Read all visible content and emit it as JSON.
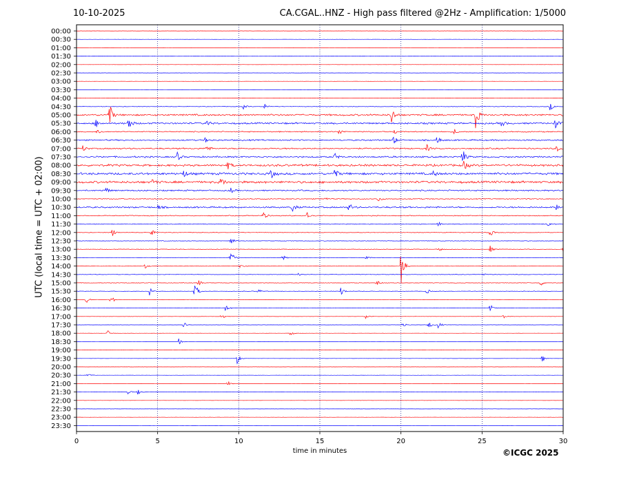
{
  "header": {
    "date": "10-10-2025",
    "title": "CA.CGAL..HNZ - High pass filtered @2Hz - Amplification: 1/5000"
  },
  "footer": {
    "copyright": "©ICGC 2025"
  },
  "colors": {
    "red_trace": "#ff0000",
    "blue_trace": "#0000ff",
    "grid": "#000080"
  },
  "chart_data": {
    "type": "line",
    "xlabel": "time in minutes",
    "ylabel": "UTC (local time = UTC + 02:00)",
    "xlim": [
      0,
      30
    ],
    "xticks": [
      0,
      5,
      10,
      15,
      20,
      25,
      30
    ],
    "grid": "vertical dotted lines at x = 5, 10, 15, 20, 25",
    "rows": [
      "00:00",
      "00:30",
      "01:00",
      "01:30",
      "02:00",
      "02:30",
      "03:00",
      "03:30",
      "04:00",
      "04:30",
      "05:00",
      "05:30",
      "06:00",
      "06:30",
      "07:00",
      "07:30",
      "08:00",
      "08:30",
      "09:00",
      "09:30",
      "10:00",
      "10:30",
      "11:00",
      "11:30",
      "12:00",
      "12:30",
      "13:00",
      "13:30",
      "14:00",
      "14:30",
      "15:00",
      "15:30",
      "16:00",
      "16:30",
      "17:00",
      "17:30",
      "18:00",
      "18:30",
      "19:00",
      "19:30",
      "20:00",
      "20:30",
      "21:00",
      "21:30",
      "22:00",
      "22:30",
      "23:00",
      "23:30"
    ],
    "series_colors": "alternating red / blue per row, starting red at 00:00",
    "noise_level": [
      0.1,
      0.1,
      0.1,
      0.15,
      0.1,
      0.1,
      0.1,
      0.1,
      0.1,
      0.3,
      1.0,
      1.0,
      0.6,
      0.8,
      0.8,
      0.9,
      1.2,
      1.3,
      1.3,
      0.8,
      0.5,
      0.9,
      0.5,
      0.4,
      0.3,
      0.3,
      0.3,
      0.25,
      0.25,
      0.3,
      0.3,
      0.25,
      0.2,
      0.15,
      0.15,
      0.12,
      0.1,
      0.1,
      0.1,
      0.1,
      0.1,
      0.1,
      0.1,
      0.1,
      0.1,
      0.1,
      0.1,
      0.1
    ],
    "events": [
      {
        "row": "04:30",
        "x": 10.3,
        "a": 4
      },
      {
        "row": "04:30",
        "x": 11.6,
        "a": 4
      },
      {
        "row": "04:30",
        "x": 29.2,
        "a": 6
      },
      {
        "row": "05:00",
        "x": 2.0,
        "a": 22
      },
      {
        "row": "05:00",
        "x": 19.4,
        "a": 14
      },
      {
        "row": "05:00",
        "x": 24.6,
        "a": 22
      },
      {
        "row": "05:30",
        "x": 3.2,
        "a": 12
      },
      {
        "row": "05:30",
        "x": 1.2,
        "a": 6
      },
      {
        "row": "05:30",
        "x": 8.0,
        "a": 5
      },
      {
        "row": "05:30",
        "x": 26.2,
        "a": 6
      },
      {
        "row": "05:30",
        "x": 29.5,
        "a": 8
      },
      {
        "row": "06:00",
        "x": 1.3,
        "a": 4
      },
      {
        "row": "06:00",
        "x": 16.2,
        "a": 5
      },
      {
        "row": "06:00",
        "x": 19.6,
        "a": 4
      },
      {
        "row": "06:00",
        "x": 23.3,
        "a": 4
      },
      {
        "row": "06:30",
        "x": 19.5,
        "a": 9
      },
      {
        "row": "06:30",
        "x": 22.2,
        "a": 7
      },
      {
        "row": "06:30",
        "x": 7.9,
        "a": 4
      },
      {
        "row": "07:00",
        "x": 0.4,
        "a": 5
      },
      {
        "row": "07:00",
        "x": 8.0,
        "a": 6
      },
      {
        "row": "07:00",
        "x": 21.6,
        "a": 5
      },
      {
        "row": "07:00",
        "x": 29.6,
        "a": 5
      },
      {
        "row": "07:30",
        "x": 6.2,
        "a": 7
      },
      {
        "row": "07:30",
        "x": 15.9,
        "a": 7
      },
      {
        "row": "07:30",
        "x": 23.8,
        "a": 12
      },
      {
        "row": "08:00",
        "x": 9.3,
        "a": 6
      },
      {
        "row": "08:00",
        "x": 23.9,
        "a": 9
      },
      {
        "row": "08:30",
        "x": 6.6,
        "a": 6
      },
      {
        "row": "08:30",
        "x": 12.0,
        "a": 7
      },
      {
        "row": "08:30",
        "x": 15.9,
        "a": 9
      },
      {
        "row": "08:30",
        "x": 22.0,
        "a": 5
      },
      {
        "row": "09:00",
        "x": 4.7,
        "a": 5
      },
      {
        "row": "09:00",
        "x": 8.9,
        "a": 8
      },
      {
        "row": "09:30",
        "x": 1.8,
        "a": 5
      },
      {
        "row": "09:30",
        "x": 9.5,
        "a": 4
      },
      {
        "row": "10:00",
        "x": 15.2,
        "a": 5
      },
      {
        "row": "10:00",
        "x": 18.6,
        "a": 5
      },
      {
        "row": "10:30",
        "x": 13.3,
        "a": 8
      },
      {
        "row": "10:30",
        "x": 16.8,
        "a": 7
      },
      {
        "row": "10:30",
        "x": 5.0,
        "a": 4
      },
      {
        "row": "10:30",
        "x": 29.6,
        "a": 5
      },
      {
        "row": "11:00",
        "x": 11.5,
        "a": 7
      },
      {
        "row": "11:00",
        "x": 14.2,
        "a": 6
      },
      {
        "row": "11:30",
        "x": 22.3,
        "a": 4
      },
      {
        "row": "11:30",
        "x": 29.0,
        "a": 7
      },
      {
        "row": "12:00",
        "x": 2.2,
        "a": 7
      },
      {
        "row": "12:00",
        "x": 4.6,
        "a": 5
      },
      {
        "row": "12:00",
        "x": 25.5,
        "a": 6
      },
      {
        "row": "12:30",
        "x": 9.5,
        "a": 7
      },
      {
        "row": "13:00",
        "x": 30.0,
        "a": 8
      },
      {
        "row": "13:00",
        "x": 22.3,
        "a": 5
      },
      {
        "row": "13:00",
        "x": 25.5,
        "a": 5
      },
      {
        "row": "13:30",
        "x": 9.5,
        "a": 14
      },
      {
        "row": "13:30",
        "x": 12.7,
        "a": 4
      },
      {
        "row": "13:30",
        "x": 17.8,
        "a": 4
      },
      {
        "row": "14:00",
        "x": 20.0,
        "a": 28
      },
      {
        "row": "14:00",
        "x": 4.2,
        "a": 4
      },
      {
        "row": "14:00",
        "x": 10.1,
        "a": 4
      },
      {
        "row": "14:30",
        "x": 13.7,
        "a": 4
      },
      {
        "row": "14:30",
        "x": 25.0,
        "a": 4
      },
      {
        "row": "15:00",
        "x": 7.5,
        "a": 5
      },
      {
        "row": "15:00",
        "x": 18.5,
        "a": 5
      },
      {
        "row": "15:00",
        "x": 28.6,
        "a": 5
      },
      {
        "row": "15:30",
        "x": 7.3,
        "a": 14
      },
      {
        "row": "15:30",
        "x": 4.5,
        "a": 6
      },
      {
        "row": "15:30",
        "x": 11.2,
        "a": 4
      },
      {
        "row": "15:30",
        "x": 16.3,
        "a": 7
      },
      {
        "row": "15:30",
        "x": 21.6,
        "a": 4
      },
      {
        "row": "16:00",
        "x": 2.1,
        "a": 8
      },
      {
        "row": "16:00",
        "x": 0.6,
        "a": 5
      },
      {
        "row": "16:30",
        "x": 9.2,
        "a": 6
      },
      {
        "row": "16:30",
        "x": 25.5,
        "a": 6
      },
      {
        "row": "17:00",
        "x": 8.9,
        "a": 6
      },
      {
        "row": "17:00",
        "x": 17.8,
        "a": 5
      },
      {
        "row": "17:00",
        "x": 26.3,
        "a": 4
      },
      {
        "row": "17:30",
        "x": 6.6,
        "a": 7
      },
      {
        "row": "17:30",
        "x": 20.1,
        "a": 5
      },
      {
        "row": "17:30",
        "x": 21.7,
        "a": 6
      },
      {
        "row": "17:30",
        "x": 22.3,
        "a": 6
      },
      {
        "row": "18:00",
        "x": 1.9,
        "a": 5
      },
      {
        "row": "18:00",
        "x": 13.2,
        "a": 4
      },
      {
        "row": "18:30",
        "x": 6.3,
        "a": 5
      },
      {
        "row": "19:30",
        "x": 9.9,
        "a": 8
      },
      {
        "row": "19:30",
        "x": 28.7,
        "a": 6
      },
      {
        "row": "20:30",
        "x": 0.7,
        "a": 3
      },
      {
        "row": "21:00",
        "x": 9.3,
        "a": 5
      },
      {
        "row": "21:30",
        "x": 3.2,
        "a": 4
      },
      {
        "row": "21:30",
        "x": 3.8,
        "a": 5
      }
    ]
  }
}
